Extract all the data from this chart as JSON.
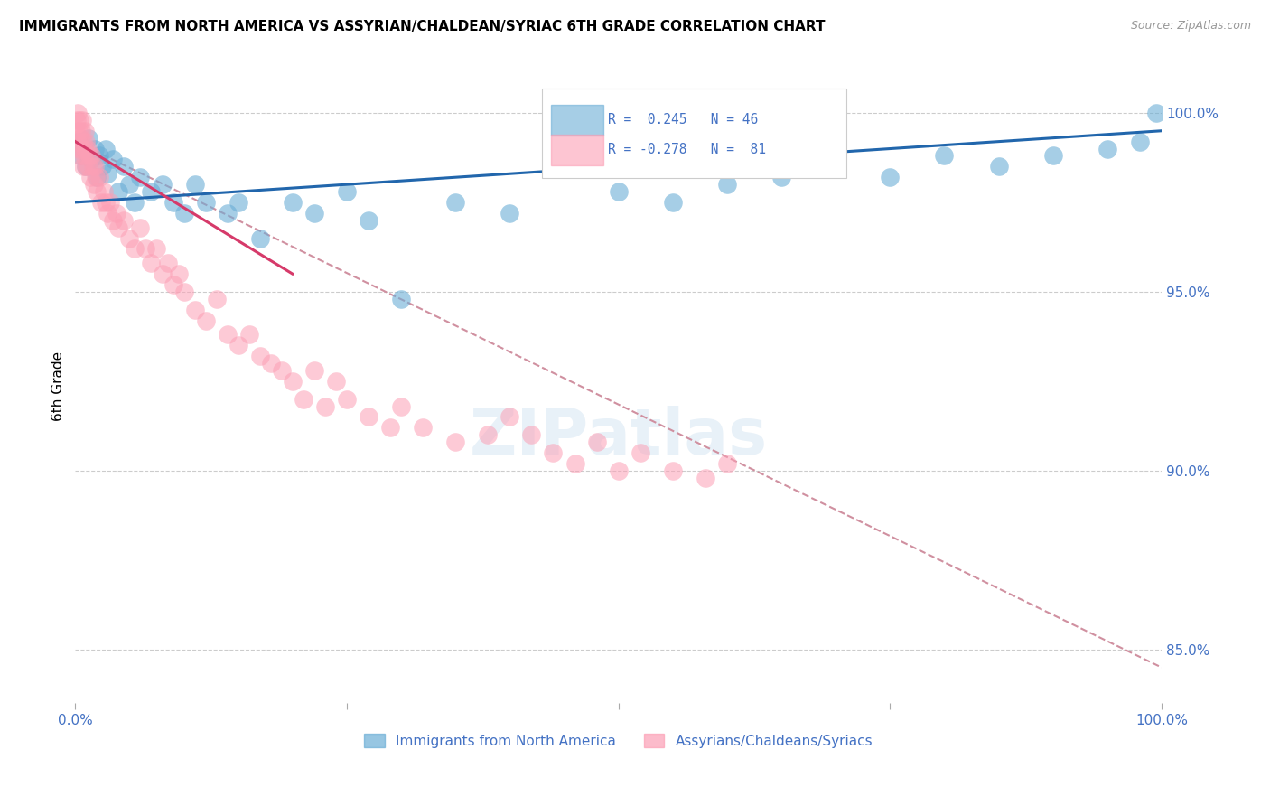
{
  "title": "IMMIGRANTS FROM NORTH AMERICA VS ASSYRIAN/CHALDEAN/SYRIAC 6TH GRADE CORRELATION CHART",
  "source": "Source: ZipAtlas.com",
  "ylabel": "6th Grade",
  "right_yticks": [
    85.0,
    90.0,
    95.0,
    100.0
  ],
  "legend_blue_r": "R =  0.245",
  "legend_blue_n": "N = 46",
  "legend_pink_r": "R = -0.278",
  "legend_pink_n": "N =  81",
  "legend_label_blue": "Immigrants from North America",
  "legend_label_pink": "Assyrians/Chaldeans/Syriacs",
  "blue_color": "#6baed6",
  "pink_color": "#fc9fb5",
  "trend_blue_color": "#2166ac",
  "trend_pink_color": "#d63a6a",
  "trend_dashed_color": "#d090a0",
  "watermark": "ZIPatlas",
  "blue_scatter_x": [
    0.3,
    0.5,
    0.8,
    1.0,
    1.2,
    1.5,
    1.8,
    2.0,
    2.2,
    2.5,
    2.8,
    3.0,
    3.5,
    4.0,
    4.5,
    5.0,
    5.5,
    6.0,
    7.0,
    8.0,
    9.0,
    10.0,
    11.0,
    12.0,
    14.0,
    15.0,
    17.0,
    20.0,
    22.0,
    25.0,
    27.0,
    30.0,
    35.0,
    40.0,
    50.0,
    55.0,
    60.0,
    65.0,
    70.0,
    75.0,
    80.0,
    85.0,
    90.0,
    95.0,
    98.0,
    99.5
  ],
  "blue_scatter_y": [
    99.2,
    98.8,
    99.0,
    98.5,
    99.3,
    98.7,
    99.0,
    98.2,
    98.8,
    98.5,
    99.0,
    98.3,
    98.7,
    97.8,
    98.5,
    98.0,
    97.5,
    98.2,
    97.8,
    98.0,
    97.5,
    97.2,
    98.0,
    97.5,
    97.2,
    97.5,
    96.5,
    97.5,
    97.2,
    97.8,
    97.0,
    94.8,
    97.5,
    97.2,
    97.8,
    97.5,
    98.0,
    98.2,
    98.5,
    98.2,
    98.8,
    98.5,
    98.8,
    99.0,
    99.2,
    100.0
  ],
  "pink_scatter_x": [
    0.1,
    0.15,
    0.2,
    0.25,
    0.3,
    0.35,
    0.4,
    0.45,
    0.5,
    0.55,
    0.6,
    0.65,
    0.7,
    0.75,
    0.8,
    0.85,
    0.9,
    0.95,
    1.0,
    1.1,
    1.2,
    1.3,
    1.4,
    1.5,
    1.6,
    1.7,
    1.8,
    1.9,
    2.0,
    2.2,
    2.4,
    2.6,
    2.8,
    3.0,
    3.2,
    3.5,
    3.8,
    4.0,
    4.5,
    5.0,
    5.5,
    6.0,
    6.5,
    7.0,
    7.5,
    8.0,
    8.5,
    9.0,
    9.5,
    10.0,
    11.0,
    12.0,
    13.0,
    14.0,
    15.0,
    16.0,
    17.0,
    18.0,
    19.0,
    20.0,
    21.0,
    22.0,
    23.0,
    24.0,
    25.0,
    27.0,
    29.0,
    30.0,
    32.0,
    35.0,
    38.0,
    40.0,
    42.0,
    44.0,
    46.0,
    48.0,
    50.0,
    52.0,
    55.0,
    58.0,
    60.0
  ],
  "pink_scatter_y": [
    99.5,
    99.8,
    99.2,
    100.0,
    99.5,
    99.0,
    99.8,
    99.3,
    98.8,
    99.5,
    99.0,
    99.8,
    98.5,
    99.2,
    98.8,
    99.5,
    99.0,
    99.2,
    98.5,
    99.0,
    98.5,
    98.8,
    98.2,
    98.8,
    98.5,
    98.0,
    98.5,
    98.2,
    97.8,
    98.2,
    97.5,
    97.8,
    97.5,
    97.2,
    97.5,
    97.0,
    97.2,
    96.8,
    97.0,
    96.5,
    96.2,
    96.8,
    96.2,
    95.8,
    96.2,
    95.5,
    95.8,
    95.2,
    95.5,
    95.0,
    94.5,
    94.2,
    94.8,
    93.8,
    93.5,
    93.8,
    93.2,
    93.0,
    92.8,
    92.5,
    92.0,
    92.8,
    91.8,
    92.5,
    92.0,
    91.5,
    91.2,
    91.8,
    91.2,
    90.8,
    91.0,
    91.5,
    91.0,
    90.5,
    90.2,
    90.8,
    90.0,
    90.5,
    90.0,
    89.8,
    90.2
  ],
  "xmin": 0.0,
  "xmax": 100.0,
  "ymin": 83.5,
  "ymax": 101.2,
  "blue_trend_x0": 0.0,
  "blue_trend_x1": 100.0,
  "blue_trend_y0": 97.5,
  "blue_trend_y1": 99.5,
  "pink_trend_x0": 0.0,
  "pink_trend_x1": 20.0,
  "pink_trend_y0": 99.2,
  "pink_trend_y1": 95.5,
  "dashed_trend_x0": 0.0,
  "dashed_trend_x1": 100.0,
  "dashed_trend_y0": 99.2,
  "dashed_trend_y1": 84.5
}
